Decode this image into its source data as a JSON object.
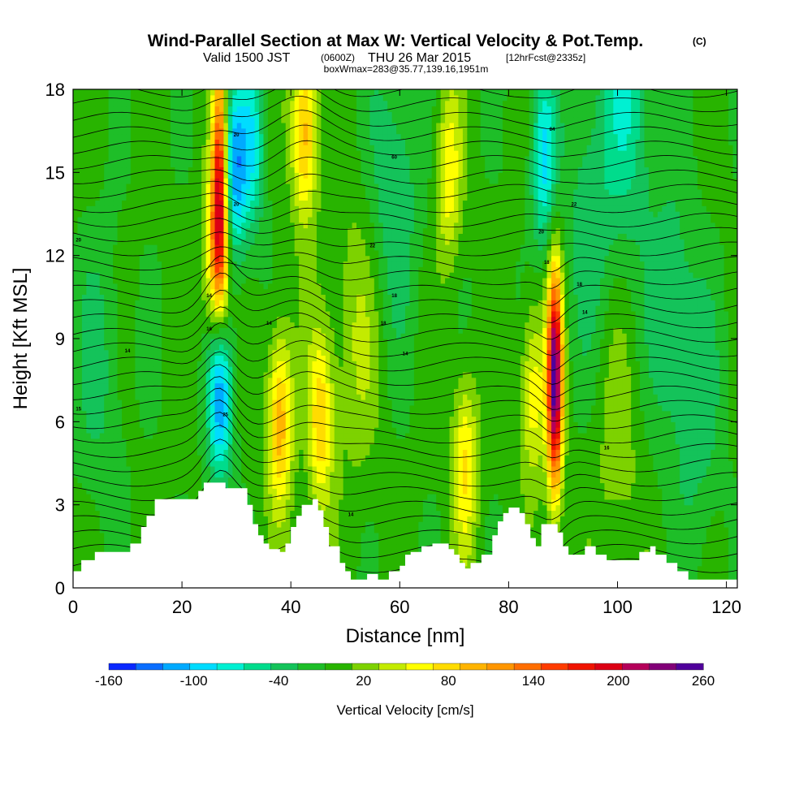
{
  "header": {
    "title_main": "Wind-Parallel Section at Max W: Vertical Velocity & Pot.Temp.",
    "title_mark": "(C)",
    "valid_prefix": "Valid 1500 JST",
    "valid_z": "(0600Z)",
    "valid_date": "THU 26 Mar 2015",
    "forecast": "[12hrFcst@2335z]",
    "box_info": "boxWmax=283@35.77,139.16,1951m"
  },
  "colorbar": {
    "label": "Vertical Velocity [cm/s]",
    "tick_labels": [
      "-160",
      "-100",
      "-40",
      "20",
      "80",
      "140",
      "200",
      "260"
    ],
    "tick_values": [
      -160,
      -100,
      -40,
      20,
      80,
      140,
      200,
      260
    ],
    "levels": [
      -160,
      -140,
      -120,
      -100,
      -80,
      -60,
      -40,
      -20,
      0,
      20,
      40,
      60,
      80,
      100,
      120,
      140,
      160,
      180,
      200,
      220,
      240,
      260
    ],
    "colors": [
      "#0a28ff",
      "#0a6eff",
      "#00aaff",
      "#00dcff",
      "#00f0d2",
      "#00dc8c",
      "#14c35a",
      "#1ebe28",
      "#28b400",
      "#7dd200",
      "#c3eb00",
      "#ffff00",
      "#ffdc00",
      "#ffb400",
      "#ff9600",
      "#ff6e00",
      "#ff3c00",
      "#f01400",
      "#dc0014",
      "#b4005a",
      "#820078",
      "#50009b"
    ]
  },
  "chart_data": {
    "type": "heatmap",
    "xlabel": "Distance [nm]",
    "ylabel": "Height [Kft MSL]",
    "xlim": [
      0,
      122
    ],
    "ylim": [
      0,
      18
    ],
    "x_ticks": [
      0,
      20,
      40,
      60,
      80,
      100,
      120
    ],
    "y_ticks": [
      0,
      3,
      6,
      9,
      12,
      15,
      18
    ],
    "value_label": "Vertical Velocity [cm/s]",
    "background_value": 5,
    "features": [
      {
        "x": 27.0,
        "y": 15.0,
        "value": 180
      },
      {
        "x": 26.5,
        "y": 12.0,
        "value": 120
      },
      {
        "x": 29.5,
        "y": 15.0,
        "value": -120
      },
      {
        "x": 33.0,
        "y": 16.0,
        "value": -75
      },
      {
        "x": 27.0,
        "y": 7.0,
        "value": -120
      },
      {
        "x": 38.0,
        "y": 6.0,
        "value": 110
      },
      {
        "x": 42.5,
        "y": 16.5,
        "value": 110
      },
      {
        "x": 45.5,
        "y": 6.0,
        "value": 90
      },
      {
        "x": 72.0,
        "y": 4.5,
        "value": 80
      },
      {
        "x": 69.0,
        "y": 15.0,
        "value": 70
      },
      {
        "x": 88.5,
        "y": 7.5,
        "value": 260
      },
      {
        "x": 84.5,
        "y": 7.0,
        "value": 70
      },
      {
        "x": 86.5,
        "y": 15.5,
        "value": -90
      },
      {
        "x": 102.0,
        "y": 17.5,
        "value": -60
      },
      {
        "x": 59.0,
        "y": 14.5,
        "value": -45
      },
      {
        "x": 95.0,
        "y": 13.5,
        "value": -40
      },
      {
        "x": 110.0,
        "y": 10.0,
        "value": -40
      },
      {
        "x": 5.0,
        "y": 8.0,
        "value": -30
      },
      {
        "x": 115.0,
        "y": 6.0,
        "value": -30
      },
      {
        "x": 52.0,
        "y": 9.0,
        "value": 35
      },
      {
        "x": 100.0,
        "y": 5.0,
        "value": 25
      }
    ],
    "terrain_top_kft": [
      [
        0,
        0.6
      ],
      [
        1.5,
        1.0
      ],
      [
        4,
        1.3
      ],
      [
        10.5,
        1.6
      ],
      [
        12.5,
        2.2
      ],
      [
        13.5,
        2.6
      ],
      [
        15,
        3.2
      ],
      [
        21.5,
        3.2
      ],
      [
        23,
        3.5
      ],
      [
        24,
        3.8
      ],
      [
        28,
        3.6
      ],
      [
        31,
        3.6
      ],
      [
        32,
        3.0
      ],
      [
        33,
        2.3
      ],
      [
        34,
        1.9
      ],
      [
        35,
        1.6
      ],
      [
        36,
        1.4
      ],
      [
        38,
        1.3
      ],
      [
        39,
        1.6
      ],
      [
        40,
        2.2
      ],
      [
        41,
        2.6
      ],
      [
        42,
        3.0
      ],
      [
        44,
        3.2
      ],
      [
        45,
        2.8
      ],
      [
        46,
        2.2
      ],
      [
        47,
        1.5
      ],
      [
        49,
        0.9
      ],
      [
        50,
        0.6
      ],
      [
        51,
        0.3
      ],
      [
        54,
        0.5
      ],
      [
        56,
        0.3
      ],
      [
        58,
        0.6
      ],
      [
        60,
        0.8
      ],
      [
        61,
        1.2
      ],
      [
        62,
        1.3
      ],
      [
        64,
        1.5
      ],
      [
        66,
        1.6
      ],
      [
        69,
        1.4
      ],
      [
        70,
        1.2
      ],
      [
        71,
        0.9
      ],
      [
        72,
        0.7
      ],
      [
        73,
        0.9
      ],
      [
        75,
        1.2
      ],
      [
        77,
        1.9
      ],
      [
        78,
        2.4
      ],
      [
        79,
        2.7
      ],
      [
        80,
        2.9
      ],
      [
        82,
        2.7
      ],
      [
        83,
        2.3
      ],
      [
        84,
        1.8
      ],
      [
        85,
        1.5
      ],
      [
        86,
        2.3
      ],
      [
        89,
        2.0
      ],
      [
        90,
        1.5
      ],
      [
        91,
        1.2
      ],
      [
        94,
        1.5
      ],
      [
        96,
        1.2
      ],
      [
        98,
        1.0
      ],
      [
        103,
        1.0
      ],
      [
        104,
        1.3
      ],
      [
        106,
        1.5
      ],
      [
        107,
        1.2
      ],
      [
        109,
        0.9
      ],
      [
        111,
        0.6
      ],
      [
        113,
        0.3
      ],
      [
        122,
        0.3
      ]
    ],
    "theta_contour_labels": [
      {
        "text": "14",
        "x": 10,
        "y": 8.5
      },
      {
        "text": "15",
        "x": 1,
        "y": 6.4
      },
      {
        "text": "14",
        "x": 25,
        "y": 10.5
      },
      {
        "text": "16",
        "x": 25,
        "y": 9.3
      },
      {
        "text": "14",
        "x": 36,
        "y": 9.5
      },
      {
        "text": "18",
        "x": 59,
        "y": 10.5
      },
      {
        "text": "18",
        "x": 57,
        "y": 9.5
      },
      {
        "text": "14",
        "x": 61,
        "y": 8.4
      },
      {
        "text": "14",
        "x": 51,
        "y": 2.6
      },
      {
        "text": "18",
        "x": 87,
        "y": 11.7
      },
      {
        "text": "18",
        "x": 93,
        "y": 10.9
      },
      {
        "text": "14",
        "x": 94,
        "y": 9.9
      },
      {
        "text": "16",
        "x": 98,
        "y": 5.0
      },
      {
        "text": "20",
        "x": 1,
        "y": 12.5
      },
      {
        "text": "22",
        "x": 55,
        "y": 12.3
      },
      {
        "text": "20",
        "x": 86,
        "y": 12.8
      },
      {
        "text": "22",
        "x": 92,
        "y": 13.8
      },
      {
        "text": "84",
        "x": 88,
        "y": 16.5
      },
      {
        "text": "60",
        "x": 59,
        "y": 15.5
      },
      {
        "text": "20",
        "x": 30,
        "y": 16.3
      },
      {
        "text": "20",
        "x": 30,
        "y": 13.8
      },
      {
        "text": "25",
        "x": 28,
        "y": 6.2
      }
    ]
  }
}
